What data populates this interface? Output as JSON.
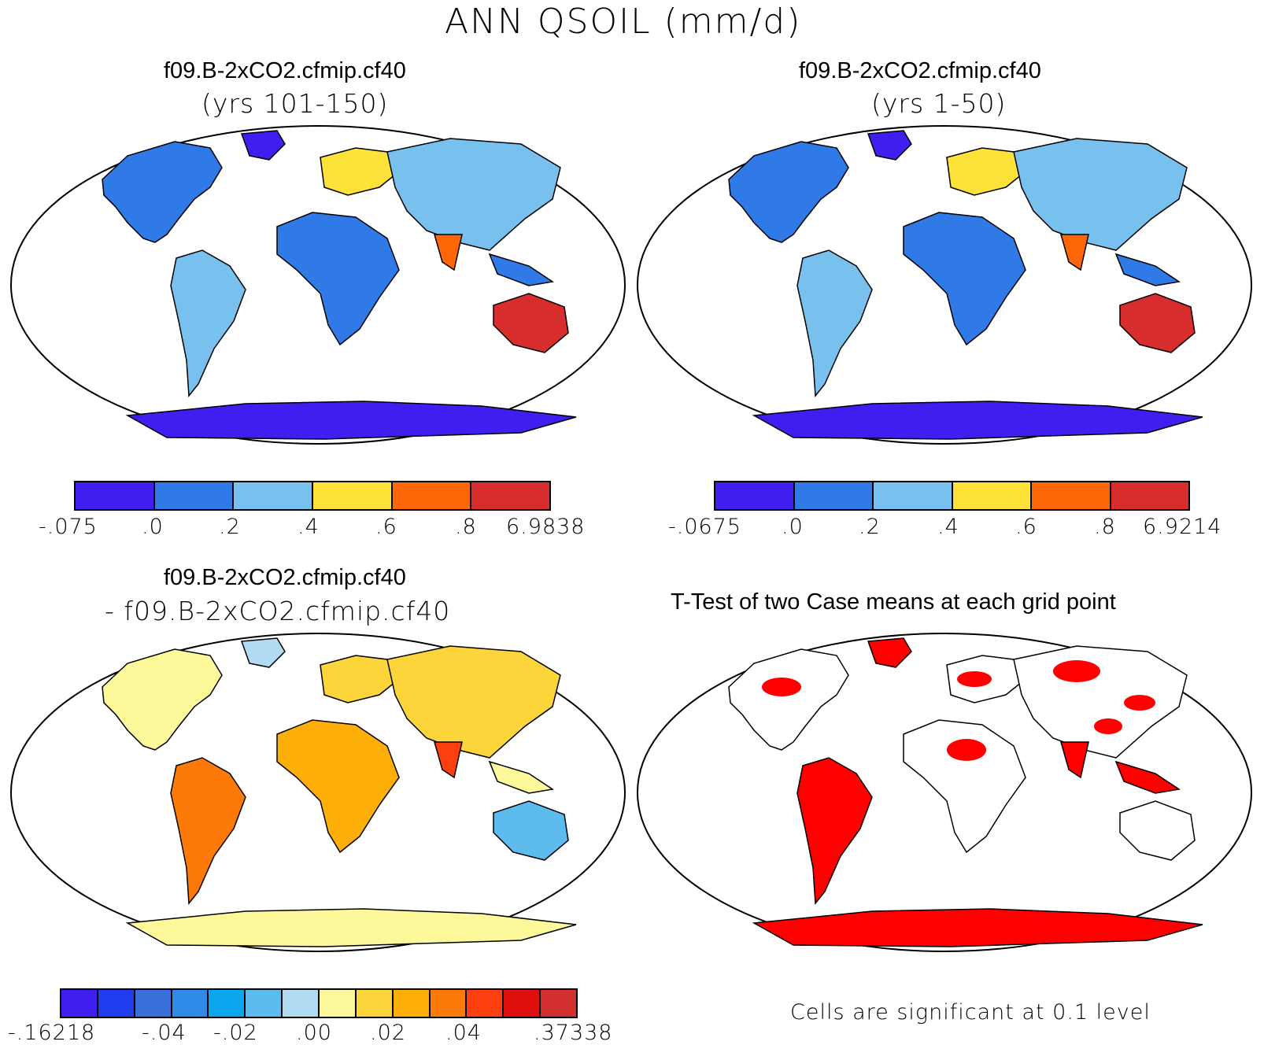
{
  "title": "ANN QSOIL (mm/d)",
  "panels": [
    {
      "id": "top-left",
      "title": "f09.B-2xCO2.cfmip.cf40",
      "subtitle": "(yrs 101-150)",
      "colorbar": {
        "colors": [
          "#3f1ff0",
          "#2f7ae6",
          "#78c1ee",
          "#fde23a",
          "#fe6608",
          "#d72d2c"
        ],
        "labels": [
          "-.075",
          ".0",
          ".2",
          ".4",
          ".6",
          ".8",
          "6.9838"
        ]
      }
    },
    {
      "id": "top-right",
      "title": "f09.B-2xCO2.cfmip.cf40",
      "subtitle": "(yrs 1-50)",
      "colorbar": {
        "colors": [
          "#3f1ff0",
          "#2f7ae6",
          "#78c1ee",
          "#fde23a",
          "#fe6608",
          "#d72d2c"
        ],
        "labels": [
          "-.0675",
          ".0",
          ".2",
          ".4",
          ".6",
          ".8",
          "6.9214"
        ]
      }
    },
    {
      "id": "bottom-left",
      "title": "f09.B-2xCO2.cfmip.cf40",
      "subtitle": "- f09.B-2xCO2.cfmip.cf40",
      "colorbar": {
        "colors": [
          "#3f1ff0",
          "#1f3cee",
          "#3a6ed9",
          "#2f8ae8",
          "#0aa6ee",
          "#5dbbee",
          "#b0dbf3",
          "#fdf89a",
          "#fcd53a",
          "#feae08",
          "#fe7a08",
          "#fe4010",
          "#e01010",
          "#d32f2f"
        ],
        "labels": [
          "-.16218",
          "-.04",
          "-.02",
          ".00",
          ".02",
          ".04",
          ".37338"
        ]
      }
    },
    {
      "id": "bottom-right",
      "title": "T-Test of two Case means at each grid point",
      "subtitle": "",
      "note": "Cells are significant at 0.1 level"
    }
  ],
  "map_colors": {
    "ocean": "#ffffff",
    "significant": "#ff0000",
    "coast": "#000000"
  }
}
